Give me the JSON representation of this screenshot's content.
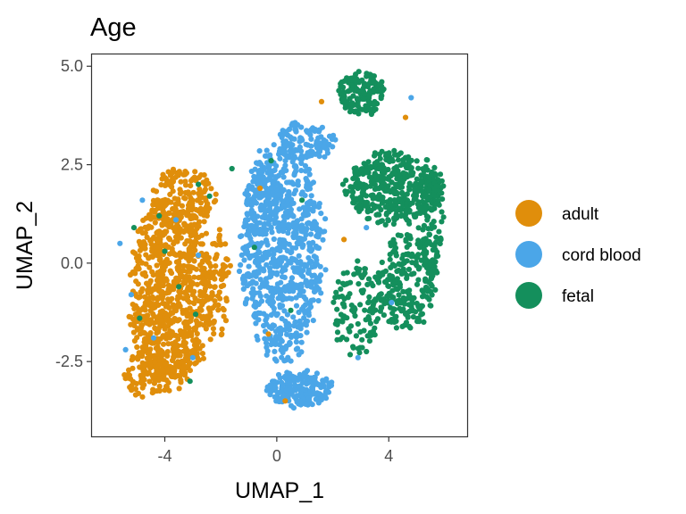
{
  "chart_data": {
    "type": "scatter",
    "title": "Age",
    "xlabel": "UMAP_1",
    "ylabel": "UMAP_2",
    "xlim": [
      -6.6,
      6.8
    ],
    "ylim": [
      -4.4,
      5.3
    ],
    "xticks": [
      {
        "value": -4,
        "label": "-4"
      },
      {
        "value": 0,
        "label": "0"
      },
      {
        "value": 4,
        "label": "4"
      }
    ],
    "yticks": [
      {
        "value": -2.5,
        "label": "-2.5"
      },
      {
        "value": 0,
        "label": "0.0"
      },
      {
        "value": 2.5,
        "label": "2.5"
      },
      {
        "value": 5,
        "label": "5.0"
      }
    ],
    "grid": false,
    "legend_position": "right",
    "series": [
      {
        "name": "adult",
        "color": "#E08E0B",
        "regions": [
          {
            "cx": -3.8,
            "cy": -0.8,
            "rx": 1.6,
            "ry": 2.6,
            "n": 820
          },
          {
            "cx": -3.3,
            "cy": 1.6,
            "rx": 1.2,
            "ry": 0.9,
            "n": 160
          },
          {
            "cx": -4.6,
            "cy": -2.8,
            "rx": 0.9,
            "ry": 0.7,
            "n": 90
          },
          {
            "cx": -2.2,
            "cy": -0.5,
            "rx": 0.6,
            "ry": 1.6,
            "n": 90
          }
        ],
        "strays": [
          [
            -0.6,
            1.9
          ],
          [
            -0.3,
            -1.8
          ],
          [
            2.4,
            0.6
          ],
          [
            4.6,
            3.7
          ],
          [
            0.3,
            -3.5
          ],
          [
            1.6,
            4.1
          ]
        ]
      },
      {
        "name": "cord blood",
        "color": "#4BA6E8",
        "regions": [
          {
            "cx": 0.2,
            "cy": 0.3,
            "rx": 1.6,
            "ry": 3.0,
            "n": 780
          },
          {
            "cx": 0.8,
            "cy": -3.2,
            "rx": 1.3,
            "ry": 0.5,
            "n": 190
          },
          {
            "cx": 1.0,
            "cy": 3.1,
            "rx": 1.2,
            "ry": 0.5,
            "n": 110
          },
          {
            "cx": -0.5,
            "cy": 1.8,
            "rx": 0.7,
            "ry": 0.9,
            "n": 90
          }
        ],
        "strays": [
          [
            -5.6,
            0.5
          ],
          [
            -5.2,
            -0.8
          ],
          [
            -4.4,
            -1.9
          ],
          [
            -3.6,
            1.1
          ],
          [
            -4.8,
            1.6
          ],
          [
            -3.0,
            -2.4
          ],
          [
            4.8,
            4.2
          ],
          [
            3.2,
            0.9
          ],
          [
            -5.4,
            -2.2
          ],
          [
            -2.8,
            0.2
          ],
          [
            4.1,
            -1.0
          ],
          [
            2.9,
            -2.4
          ]
        ]
      },
      {
        "name": "fetal",
        "color": "#148F5C",
        "regions": [
          {
            "cx": 4.2,
            "cy": 1.9,
            "rx": 1.9,
            "ry": 1.0,
            "n": 420
          },
          {
            "cx": 3.0,
            "cy": 4.3,
            "rx": 0.9,
            "ry": 0.6,
            "n": 150
          },
          {
            "cx": 4.6,
            "cy": -0.5,
            "rx": 1.2,
            "ry": 1.4,
            "n": 220
          },
          {
            "cx": 2.8,
            "cy": -1.2,
            "rx": 0.9,
            "ry": 1.3,
            "n": 110
          },
          {
            "cx": 5.5,
            "cy": 1.0,
            "rx": 0.5,
            "ry": 1.5,
            "n": 80
          }
        ],
        "strays": [
          [
            -4.2,
            1.2
          ],
          [
            -3.5,
            -0.6
          ],
          [
            -2.8,
            2.0
          ],
          [
            -4.9,
            -1.4
          ],
          [
            -3.1,
            -3.0
          ],
          [
            -0.8,
            0.4
          ],
          [
            0.5,
            -1.2
          ],
          [
            -0.2,
            2.6
          ],
          [
            -2.4,
            1.7
          ],
          [
            -4.0,
            0.3
          ],
          [
            -2.9,
            -1.3
          ],
          [
            -5.1,
            0.9
          ],
          [
            -1.6,
            2.4
          ],
          [
            0.9,
            1.6
          ]
        ]
      }
    ]
  }
}
